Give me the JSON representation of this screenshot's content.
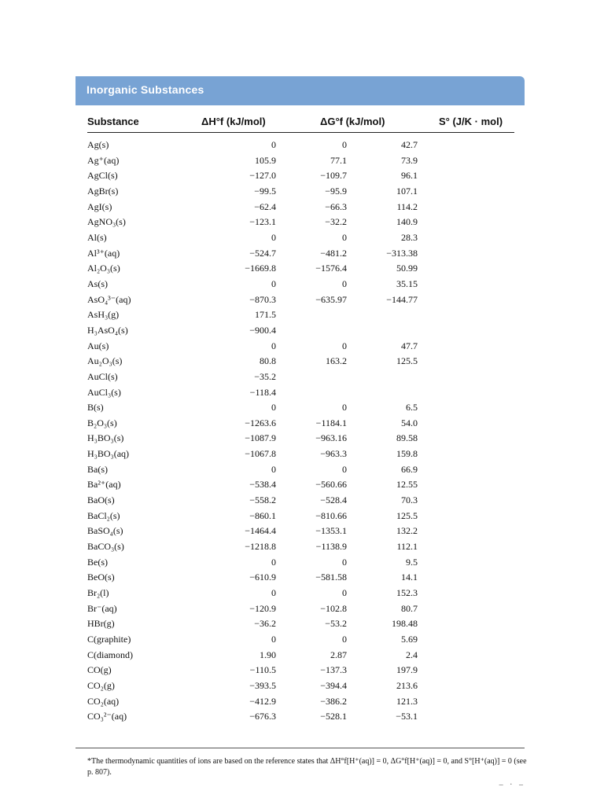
{
  "section_title": "Inorganic Substances",
  "columns": {
    "substance": "Substance",
    "dH": "ΔH°f (kJ/mol)",
    "dG": "ΔG°f (kJ/mol)",
    "S": "S° (J/K · mol)"
  },
  "rows": [
    {
      "substance": "Ag(s)",
      "dH": "0",
      "dG": "0",
      "S": "42.7"
    },
    {
      "substance": "Ag⁺(aq)",
      "dH": "105.9",
      "dG": "77.1",
      "S": "73.9"
    },
    {
      "substance": "AgCl(s)",
      "dH": "−127.0",
      "dG": "−109.7",
      "S": "96.1"
    },
    {
      "substance": "AgBr(s)",
      "dH": "−99.5",
      "dG": "−95.9",
      "S": "107.1"
    },
    {
      "substance": "AgI(s)",
      "dH": "−62.4",
      "dG": "−66.3",
      "S": "114.2"
    },
    {
      "substance": "AgNO₃(s)",
      "dH": "−123.1",
      "dG": "−32.2",
      "S": "140.9"
    },
    {
      "substance": "Al(s)",
      "dH": "0",
      "dG": "0",
      "S": "28.3"
    },
    {
      "substance": "Al³⁺(aq)",
      "dH": "−524.7",
      "dG": "−481.2",
      "S": "−313.38"
    },
    {
      "substance": "Al₂O₃(s)",
      "dH": "−1669.8",
      "dG": "−1576.4",
      "S": "50.99"
    },
    {
      "substance": "As(s)",
      "dH": "0",
      "dG": "0",
      "S": "35.15"
    },
    {
      "substance": "AsO₄³⁻(aq)",
      "dH": "−870.3",
      "dG": "−635.97",
      "S": "−144.77"
    },
    {
      "substance": "AsH₃(g)",
      "dH": "171.5",
      "dG": "",
      "S": ""
    },
    {
      "substance": "H₃AsO₄(s)",
      "dH": "−900.4",
      "dG": "",
      "S": ""
    },
    {
      "substance": "Au(s)",
      "dH": "0",
      "dG": "0",
      "S": "47.7"
    },
    {
      "substance": "Au₂O₃(s)",
      "dH": "80.8",
      "dG": "163.2",
      "S": "125.5"
    },
    {
      "substance": "AuCl(s)",
      "dH": "−35.2",
      "dG": "",
      "S": ""
    },
    {
      "substance": "AuCl₃(s)",
      "dH": "−118.4",
      "dG": "",
      "S": ""
    },
    {
      "substance": "B(s)",
      "dH": "0",
      "dG": "0",
      "S": "6.5"
    },
    {
      "substance": "B₂O₃(s)",
      "dH": "−1263.6",
      "dG": "−1184.1",
      "S": "54.0"
    },
    {
      "substance": "H₃BO₃(s)",
      "dH": "−1087.9",
      "dG": "−963.16",
      "S": "89.58"
    },
    {
      "substance": "H₃BO₃(aq)",
      "dH": "−1067.8",
      "dG": "−963.3",
      "S": "159.8"
    },
    {
      "substance": "Ba(s)",
      "dH": "0",
      "dG": "0",
      "S": "66.9"
    },
    {
      "substance": "Ba²⁺(aq)",
      "dH": "−538.4",
      "dG": "−560.66",
      "S": "12.55"
    },
    {
      "substance": "BaO(s)",
      "dH": "−558.2",
      "dG": "−528.4",
      "S": "70.3"
    },
    {
      "substance": "BaCl₂(s)",
      "dH": "−860.1",
      "dG": "−810.66",
      "S": "125.5"
    },
    {
      "substance": "BaSO₄(s)",
      "dH": "−1464.4",
      "dG": "−1353.1",
      "S": "132.2"
    },
    {
      "substance": "BaCO₃(s)",
      "dH": "−1218.8",
      "dG": "−1138.9",
      "S": "112.1"
    },
    {
      "substance": "Be(s)",
      "dH": "0",
      "dG": "0",
      "S": "9.5"
    },
    {
      "substance": "BeO(s)",
      "dH": "−610.9",
      "dG": "−581.58",
      "S": "14.1"
    },
    {
      "substance": "Br₂(l)",
      "dH": "0",
      "dG": "0",
      "S": "152.3"
    },
    {
      "substance": "Br⁻(aq)",
      "dH": "−120.9",
      "dG": "−102.8",
      "S": "80.7"
    },
    {
      "substance": "HBr(g)",
      "dH": "−36.2",
      "dG": "−53.2",
      "S": "198.48"
    },
    {
      "substance": "C(graphite)",
      "dH": "0",
      "dG": "0",
      "S": "5.69"
    },
    {
      "substance": "C(diamond)",
      "dH": "1.90",
      "dG": "2.87",
      "S": "2.4"
    },
    {
      "substance": "CO(g)",
      "dH": "−110.5",
      "dG": "−137.3",
      "S": "197.9"
    },
    {
      "substance": "CO₂(g)",
      "dH": "−393.5",
      "dG": "−394.4",
      "S": "213.6"
    },
    {
      "substance": "CO₂(aq)",
      "dH": "−412.9",
      "dG": "−386.2",
      "S": "121.3"
    },
    {
      "substance": "CO₃²⁻(aq)",
      "dH": "−676.3",
      "dG": "−528.1",
      "S": "−53.1"
    }
  ],
  "footnote": "*The thermodynamic quantities of ions are based on the reference states that ΔH°f[H⁺(aq)] = 0, ΔG°f[H⁺(aq)] = 0, and S°[H⁺(aq)] = 0 (see p. 807).",
  "corner_mark": "– · –"
}
